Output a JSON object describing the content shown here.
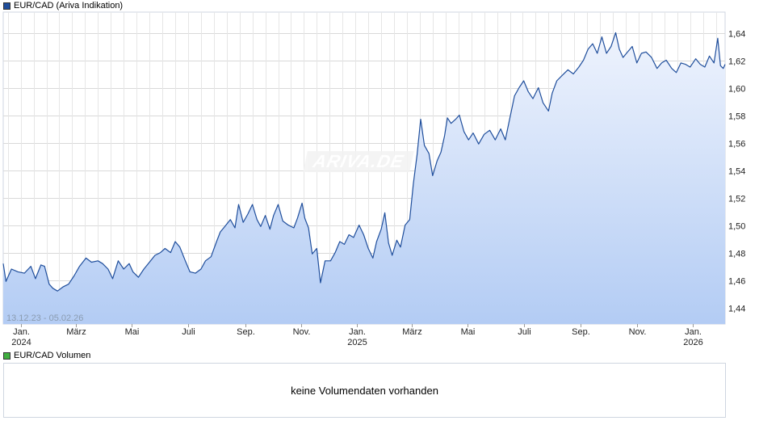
{
  "header": {
    "main_legend": "EUR/CAD (Ariva Indikation)",
    "main_legend_color": "#1f4e9c",
    "volume_legend": "EUR/CAD Volumen",
    "volume_legend_color": "#3fae3f"
  },
  "watermark": "ARIVA.DE",
  "date_range": "13.12.23 - 05.02.26",
  "volume_panel": {
    "message": "keine Volumendaten vorhanden"
  },
  "colors": {
    "line": "#1f4e9c",
    "fill_top": "#eef3fd",
    "fill_bottom": "#b3ccf4",
    "grid": "#d9d9d9"
  },
  "chart_data": {
    "type": "area",
    "title": "EUR/CAD (Ariva Indikation)",
    "ylim": [
      1.428,
      1.655
    ],
    "y_ticks": [
      "1,44",
      "1,46",
      "1,48",
      "1,50",
      "1,52",
      "1,54",
      "1,56",
      "1,58",
      "1,60",
      "1,62",
      "1,64"
    ],
    "y_tick_values": [
      1.44,
      1.46,
      1.48,
      1.5,
      1.52,
      1.54,
      1.56,
      1.58,
      1.6,
      1.62,
      1.64
    ],
    "x_range": [
      "2023-12-13",
      "2026-02-05"
    ],
    "x_ticks": [
      {
        "date": "2024-01-01",
        "label": "Jan.",
        "year": "2024"
      },
      {
        "date": "2024-03-01",
        "label": "März",
        "year": ""
      },
      {
        "date": "2024-05-01",
        "label": "Mai",
        "year": ""
      },
      {
        "date": "2024-07-01",
        "label": "Juli",
        "year": ""
      },
      {
        "date": "2024-09-01",
        "label": "Sep.",
        "year": ""
      },
      {
        "date": "2024-11-01",
        "label": "Nov.",
        "year": ""
      },
      {
        "date": "2025-01-01",
        "label": "Jan.",
        "year": "2025"
      },
      {
        "date": "2025-03-01",
        "label": "März",
        "year": ""
      },
      {
        "date": "2025-05-01",
        "label": "Mai",
        "year": ""
      },
      {
        "date": "2025-07-01",
        "label": "Juli",
        "year": ""
      },
      {
        "date": "2025-09-01",
        "label": "Sep.",
        "year": ""
      },
      {
        "date": "2025-11-01",
        "label": "Nov.",
        "year": ""
      },
      {
        "date": "2026-01-01",
        "label": "Jan.",
        "year": "2026"
      }
    ],
    "grid": true,
    "series": [
      {
        "name": "EUR/CAD",
        "points": [
          [
            "2023-12-13",
            1.472
          ],
          [
            "2023-12-16",
            1.459
          ],
          [
            "2023-12-22",
            1.468
          ],
          [
            "2023-12-29",
            1.466
          ],
          [
            "2024-01-05",
            1.465
          ],
          [
            "2024-01-12",
            1.47
          ],
          [
            "2024-01-17",
            1.461
          ],
          [
            "2024-01-23",
            1.471
          ],
          [
            "2024-01-27",
            1.47
          ],
          [
            "2024-02-01",
            1.457
          ],
          [
            "2024-02-05",
            1.454
          ],
          [
            "2024-02-10",
            1.452
          ],
          [
            "2024-02-16",
            1.455
          ],
          [
            "2024-02-22",
            1.457
          ],
          [
            "2024-02-28",
            1.463
          ],
          [
            "2024-03-05",
            1.47
          ],
          [
            "2024-03-12",
            1.476
          ],
          [
            "2024-03-18",
            1.473
          ],
          [
            "2024-03-25",
            1.474
          ],
          [
            "2024-03-30",
            1.472
          ],
          [
            "2024-04-05",
            1.468
          ],
          [
            "2024-04-10",
            1.461
          ],
          [
            "2024-04-16",
            1.474
          ],
          [
            "2024-04-22",
            1.468
          ],
          [
            "2024-04-28",
            1.472
          ],
          [
            "2024-05-02",
            1.466
          ],
          [
            "2024-05-08",
            1.462
          ],
          [
            "2024-05-14",
            1.468
          ],
          [
            "2024-05-20",
            1.473
          ],
          [
            "2024-05-26",
            1.478
          ],
          [
            "2024-06-01",
            1.48
          ],
          [
            "2024-06-06",
            1.483
          ],
          [
            "2024-06-12",
            1.48
          ],
          [
            "2024-06-17",
            1.488
          ],
          [
            "2024-06-22",
            1.484
          ],
          [
            "2024-06-28",
            1.474
          ],
          [
            "2024-07-03",
            1.466
          ],
          [
            "2024-07-09",
            1.465
          ],
          [
            "2024-07-15",
            1.468
          ],
          [
            "2024-07-20",
            1.474
          ],
          [
            "2024-07-26",
            1.477
          ],
          [
            "2024-08-01",
            1.488
          ],
          [
            "2024-08-05",
            1.495
          ],
          [
            "2024-08-10",
            1.499
          ],
          [
            "2024-08-16",
            1.504
          ],
          [
            "2024-08-21",
            1.498
          ],
          [
            "2024-08-25",
            1.515
          ],
          [
            "2024-08-30",
            1.502
          ],
          [
            "2024-09-04",
            1.508
          ],
          [
            "2024-09-09",
            1.515
          ],
          [
            "2024-09-14",
            1.504
          ],
          [
            "2024-09-18",
            1.499
          ],
          [
            "2024-09-23",
            1.507
          ],
          [
            "2024-09-28",
            1.497
          ],
          [
            "2024-10-02",
            1.507
          ],
          [
            "2024-10-07",
            1.515
          ],
          [
            "2024-10-12",
            1.503
          ],
          [
            "2024-10-18",
            1.5
          ],
          [
            "2024-10-24",
            1.498
          ],
          [
            "2024-10-28",
            1.505
          ],
          [
            "2024-11-02",
            1.516
          ],
          [
            "2024-11-05",
            1.505
          ],
          [
            "2024-11-09",
            1.498
          ],
          [
            "2024-11-13",
            1.479
          ],
          [
            "2024-11-18",
            1.483
          ],
          [
            "2024-11-22",
            1.458
          ],
          [
            "2024-11-27",
            1.474
          ],
          [
            "2024-12-03",
            1.474
          ],
          [
            "2024-12-08",
            1.48
          ],
          [
            "2024-12-13",
            1.488
          ],
          [
            "2024-12-18",
            1.486
          ],
          [
            "2024-12-23",
            1.493
          ],
          [
            "2024-12-28",
            1.491
          ],
          [
            "2025-01-03",
            1.5
          ],
          [
            "2025-01-08",
            1.493
          ],
          [
            "2025-01-13",
            1.483
          ],
          [
            "2025-01-18",
            1.476
          ],
          [
            "2025-01-22",
            1.488
          ],
          [
            "2025-01-27",
            1.497
          ],
          [
            "2025-01-31",
            1.509
          ],
          [
            "2025-02-04",
            1.487
          ],
          [
            "2025-02-08",
            1.478
          ],
          [
            "2025-02-13",
            1.489
          ],
          [
            "2025-02-17",
            1.484
          ],
          [
            "2025-02-22",
            1.5
          ],
          [
            "2025-02-27",
            1.504
          ],
          [
            "2025-03-03",
            1.53
          ],
          [
            "2025-03-07",
            1.551
          ],
          [
            "2025-03-11",
            1.577
          ],
          [
            "2025-03-15",
            1.558
          ],
          [
            "2025-03-20",
            1.552
          ],
          [
            "2025-03-24",
            1.536
          ],
          [
            "2025-03-29",
            1.547
          ],
          [
            "2025-04-02",
            1.553
          ],
          [
            "2025-04-06",
            1.565
          ],
          [
            "2025-04-09",
            1.578
          ],
          [
            "2025-04-13",
            1.574
          ],
          [
            "2025-04-18",
            1.577
          ],
          [
            "2025-04-22",
            1.58
          ],
          [
            "2025-04-27",
            1.568
          ],
          [
            "2025-05-02",
            1.562
          ],
          [
            "2025-05-07",
            1.567
          ],
          [
            "2025-05-13",
            1.559
          ],
          [
            "2025-05-19",
            1.566
          ],
          [
            "2025-05-25",
            1.569
          ],
          [
            "2025-05-31",
            1.562
          ],
          [
            "2025-06-06",
            1.57
          ],
          [
            "2025-06-11",
            1.562
          ],
          [
            "2025-06-16",
            1.578
          ],
          [
            "2025-06-21",
            1.594
          ],
          [
            "2025-06-26",
            1.6
          ],
          [
            "2025-07-01",
            1.605
          ],
          [
            "2025-07-06",
            1.597
          ],
          [
            "2025-07-11",
            1.592
          ],
          [
            "2025-07-17",
            1.6
          ],
          [
            "2025-07-22",
            1.589
          ],
          [
            "2025-07-28",
            1.583
          ],
          [
            "2025-08-01",
            1.596
          ],
          [
            "2025-08-06",
            1.605
          ],
          [
            "2025-08-12",
            1.609
          ],
          [
            "2025-08-18",
            1.613
          ],
          [
            "2025-08-24",
            1.61
          ],
          [
            "2025-08-30",
            1.615
          ],
          [
            "2025-09-04",
            1.62
          ],
          [
            "2025-09-09",
            1.628
          ],
          [
            "2025-09-14",
            1.632
          ],
          [
            "2025-09-19",
            1.625
          ],
          [
            "2025-09-24",
            1.637
          ],
          [
            "2025-09-29",
            1.625
          ],
          [
            "2025-10-04",
            1.63
          ],
          [
            "2025-10-09",
            1.64
          ],
          [
            "2025-10-13",
            1.628
          ],
          [
            "2025-10-17",
            1.622
          ],
          [
            "2025-10-22",
            1.626
          ],
          [
            "2025-10-27",
            1.63
          ],
          [
            "2025-11-01",
            1.618
          ],
          [
            "2025-11-06",
            1.625
          ],
          [
            "2025-11-11",
            1.626
          ],
          [
            "2025-11-17",
            1.622
          ],
          [
            "2025-11-23",
            1.614
          ],
          [
            "2025-11-28",
            1.618
          ],
          [
            "2025-12-03",
            1.62
          ],
          [
            "2025-12-09",
            1.614
          ],
          [
            "2025-12-14",
            1.611
          ],
          [
            "2025-12-19",
            1.618
          ],
          [
            "2025-12-24",
            1.617
          ],
          [
            "2025-12-29",
            1.615
          ],
          [
            "2026-01-04",
            1.621
          ],
          [
            "2026-01-09",
            1.617
          ],
          [
            "2026-01-14",
            1.615
          ],
          [
            "2026-01-19",
            1.623
          ],
          [
            "2026-01-24",
            1.618
          ],
          [
            "2026-01-28",
            1.636
          ],
          [
            "2026-01-31",
            1.616
          ],
          [
            "2026-02-03",
            1.614
          ],
          [
            "2026-02-05",
            1.617
          ]
        ]
      }
    ]
  }
}
